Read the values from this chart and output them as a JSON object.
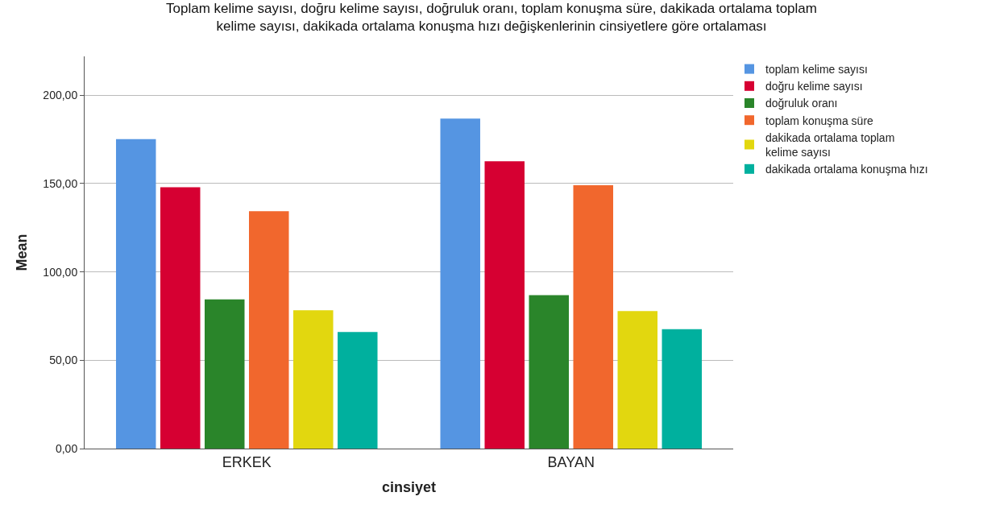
{
  "chart_data": {
    "type": "bar",
    "title": "Toplam kelime sayısı, doğru kelime sayısı, doğruluk oranı, toplam konuşma süre, dakikada ortalama toplam\nkelime sayısı, dakikada ortalama konuşma hızı değişkenlerinin cinsiyetlere göre ortalaması",
    "xlabel": "cinsiyet",
    "ylabel": "Mean",
    "categories": [
      "ERKEK",
      "BAYAN"
    ],
    "series": [
      {
        "name": "toplam kelime sayısı",
        "color": "#5595e2",
        "values": [
          175.2,
          186.8
        ]
      },
      {
        "name": "doğru kelime sayısı",
        "color": "#d60032",
        "values": [
          147.9,
          162.6
        ]
      },
      {
        "name": "doğruluk oranı",
        "color": "#2a852a",
        "values": [
          84.4,
          86.8
        ]
      },
      {
        "name": "toplam konuşma süre",
        "color": "#f1672d",
        "values": [
          134.4,
          149.1
        ]
      },
      {
        "name": "dakikada ortalama toplam\nkelime sayısı",
        "color": "#e2d70f",
        "values": [
          78.3,
          77.8
        ]
      },
      {
        "name": "dakikada ortalama konuşma hızı",
        "color": "#00b09e",
        "values": [
          66.0,
          67.6
        ]
      }
    ],
    "ylim": [
      0,
      222
    ],
    "yticks": [
      {
        "value": 0,
        "label": "0,00"
      },
      {
        "value": 50,
        "label": "50,00"
      },
      {
        "value": 100,
        "label": "100,00"
      },
      {
        "value": 150,
        "label": "150,00"
      },
      {
        "value": 200,
        "label": "200,00"
      }
    ],
    "grid": "y",
    "legend": "top right"
  }
}
